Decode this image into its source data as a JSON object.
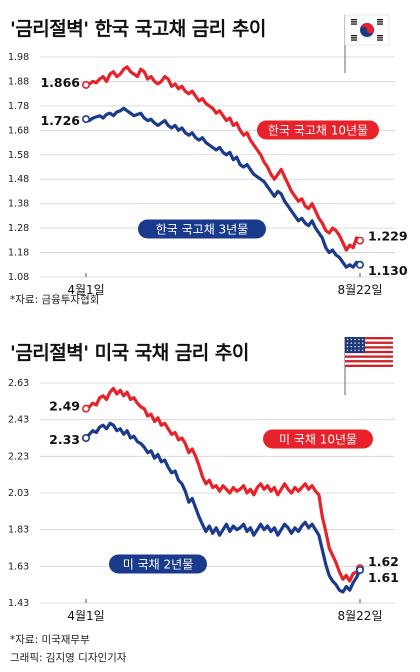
{
  "panels": [
    {
      "title": "'금리절벽' 한국 국고채 금리 추이",
      "source": "*자료: 금융투자협회",
      "credit": "",
      "flag": "korea-flag-icon"
    },
    {
      "title": "'금리절벽' 미국 국채 금리 추이",
      "source": "*자료: 미국재무부",
      "credit": "그래픽: 김지영 디자인기자",
      "flag": "usa-flag-icon"
    }
  ],
  "colors": {
    "red": "#e8222a",
    "navy": "#1a3a8c",
    "grid": "#cccccc"
  },
  "chart_data": [
    {
      "type": "line",
      "title": "'금리절벽' 한국 국고채 금리 추이",
      "x_start": "4월1일",
      "x_end": "8월22일",
      "ylim": [
        1.08,
        1.98
      ],
      "yticks": [
        "1.98",
        "1.88",
        "1.78",
        "1.68",
        "1.58",
        "1.48",
        "1.38",
        "1.28",
        "1.18",
        "1.08"
      ],
      "series": [
        {
          "name": "한국 국고채 10년물",
          "color": "#e8222a",
          "start_value": "1.866",
          "end_value": "1.229",
          "values": [
            1.866,
            1.87,
            1.88,
            1.875,
            1.89,
            1.9,
            1.88,
            1.91,
            1.92,
            1.9,
            1.91,
            1.93,
            1.94,
            1.92,
            1.91,
            1.9,
            1.93,
            1.92,
            1.89,
            1.9,
            1.88,
            1.87,
            1.88,
            1.9,
            1.89,
            1.86,
            1.87,
            1.85,
            1.86,
            1.84,
            1.83,
            1.84,
            1.82,
            1.8,
            1.81,
            1.79,
            1.78,
            1.77,
            1.75,
            1.76,
            1.74,
            1.72,
            1.73,
            1.7,
            1.71,
            1.68,
            1.66,
            1.67,
            1.64,
            1.62,
            1.6,
            1.58,
            1.55,
            1.53,
            1.5,
            1.48,
            1.5,
            1.52,
            1.49,
            1.46,
            1.43,
            1.41,
            1.39,
            1.4,
            1.37,
            1.36,
            1.38,
            1.35,
            1.32,
            1.3,
            1.27,
            1.26,
            1.28,
            1.27,
            1.25,
            1.22,
            1.19,
            1.21,
            1.2,
            1.24,
            1.229
          ]
        },
        {
          "name": "한국 국고채 3년물",
          "color": "#1a3a8c",
          "start_value": "1.726",
          "end_value": "1.130",
          "values": [
            1.726,
            1.72,
            1.73,
            1.735,
            1.74,
            1.73,
            1.745,
            1.75,
            1.74,
            1.755,
            1.76,
            1.77,
            1.76,
            1.75,
            1.74,
            1.745,
            1.75,
            1.73,
            1.72,
            1.725,
            1.71,
            1.7,
            1.71,
            1.72,
            1.7,
            1.69,
            1.7,
            1.68,
            1.69,
            1.67,
            1.66,
            1.67,
            1.65,
            1.64,
            1.65,
            1.63,
            1.62,
            1.61,
            1.6,
            1.61,
            1.59,
            1.58,
            1.59,
            1.56,
            1.57,
            1.54,
            1.53,
            1.54,
            1.52,
            1.5,
            1.49,
            1.48,
            1.47,
            1.45,
            1.43,
            1.41,
            1.43,
            1.42,
            1.39,
            1.37,
            1.35,
            1.33,
            1.31,
            1.32,
            1.3,
            1.29,
            1.31,
            1.28,
            1.26,
            1.24,
            1.2,
            1.18,
            1.19,
            1.17,
            1.16,
            1.14,
            1.12,
            1.13,
            1.12,
            1.14,
            1.13
          ]
        }
      ]
    },
    {
      "type": "line",
      "title": "'금리절벽' 미국 국채 금리 추이",
      "x_start": "4월1일",
      "x_end": "8월22일",
      "ylim": [
        1.43,
        2.63
      ],
      "yticks": [
        "2.63",
        "2.43",
        "2.23",
        "2.03",
        "1.83",
        "1.63",
        "1.43"
      ],
      "series": [
        {
          "name": "미 국채 10년물",
          "color": "#e8222a",
          "start_value": "2.49",
          "end_value": "1.62",
          "values": [
            2.49,
            2.5,
            2.52,
            2.51,
            2.55,
            2.56,
            2.54,
            2.58,
            2.6,
            2.57,
            2.59,
            2.56,
            2.58,
            2.54,
            2.55,
            2.52,
            2.5,
            2.49,
            2.45,
            2.46,
            2.42,
            2.44,
            2.4,
            2.41,
            2.38,
            2.35,
            2.36,
            2.32,
            2.33,
            2.3,
            2.25,
            2.27,
            2.23,
            2.18,
            2.12,
            2.08,
            2.1,
            2.06,
            2.07,
            2.04,
            2.07,
            2.05,
            2.03,
            2.06,
            2.04,
            2.05,
            2.07,
            2.03,
            2.05,
            2.02,
            2.06,
            2.08,
            2.05,
            2.07,
            2.04,
            2.06,
            2.02,
            2.05,
            2.08,
            2.05,
            2.03,
            2.06,
            2.04,
            2.06,
            2.08,
            2.05,
            2.07,
            2.04,
            2.02,
            1.9,
            1.82,
            1.73,
            1.69,
            1.65,
            1.6,
            1.56,
            1.58,
            1.55,
            1.59,
            1.6,
            1.62
          ]
        },
        {
          "name": "미 국채 2년물",
          "color": "#1a3a8c",
          "start_value": "2.33",
          "end_value": "1.61",
          "values": [
            2.33,
            2.35,
            2.37,
            2.36,
            2.39,
            2.4,
            2.38,
            2.41,
            2.4,
            2.37,
            2.38,
            2.35,
            2.37,
            2.33,
            2.34,
            2.31,
            2.3,
            2.28,
            2.25,
            2.26,
            2.22,
            2.24,
            2.2,
            2.21,
            2.17,
            2.14,
            2.15,
            2.1,
            2.08,
            2.04,
            1.98,
            2.0,
            1.95,
            1.9,
            1.86,
            1.82,
            1.85,
            1.81,
            1.84,
            1.8,
            1.83,
            1.86,
            1.82,
            1.85,
            1.83,
            1.84,
            1.86,
            1.82,
            1.84,
            1.8,
            1.83,
            1.86,
            1.83,
            1.85,
            1.82,
            1.84,
            1.8,
            1.83,
            1.86,
            1.84,
            1.81,
            1.84,
            1.82,
            1.85,
            1.87,
            1.84,
            1.86,
            1.83,
            1.8,
            1.72,
            1.64,
            1.58,
            1.55,
            1.53,
            1.5,
            1.49,
            1.52,
            1.5,
            1.54,
            1.57,
            1.61
          ]
        }
      ]
    }
  ]
}
